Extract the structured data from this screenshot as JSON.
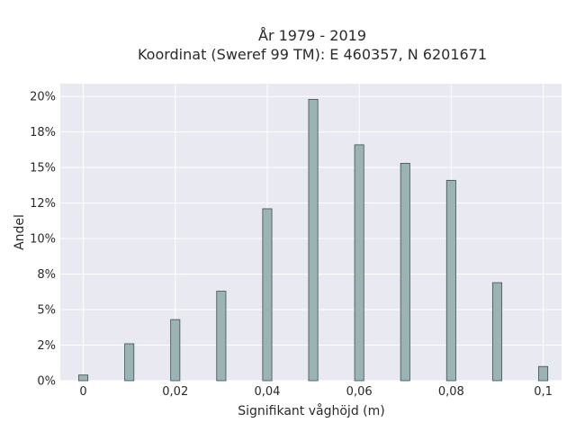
{
  "chart_data": {
    "type": "bar",
    "title_lines": [
      "År 1979 - 2019",
      "Koordinat (Sweref 99 TM): E 460357, N 6201671"
    ],
    "xlabel": "Signifikant våghöjd (m)",
    "ylabel": "Andel",
    "x": [
      0,
      0.01,
      0.02,
      0.03,
      0.04,
      0.05,
      0.06,
      0.07,
      0.08,
      0.09,
      0.1
    ],
    "values": [
      0.4,
      2.6,
      4.3,
      6.3,
      12.1,
      19.8,
      16.6,
      15.3,
      14.1,
      6.9,
      1.0
    ],
    "bar_width": 0.002,
    "xlim": [
      -0.005,
      0.104
    ],
    "ylim": [
      0,
      20.9
    ],
    "x_ticks": [
      0,
      0.02,
      0.04,
      0.06,
      0.08,
      0.1
    ],
    "x_tick_labels": [
      "0",
      "0,02",
      "0,04",
      "0,06",
      "0,08",
      "0,1"
    ],
    "y_ticks": [
      0,
      2.5,
      5,
      7.5,
      10,
      12.5,
      15,
      17.5,
      20
    ],
    "y_tick_labels": [
      "0%",
      "2%",
      "5%",
      "8%",
      "10%",
      "12%",
      "15%",
      "18%",
      "20%"
    ],
    "grid": true,
    "colors": {
      "plot_bg": "#e8e9f1",
      "grid": "#ffffff",
      "bar_fill": "#9bb3b3",
      "bar_stroke": "#3f4f4f"
    }
  }
}
